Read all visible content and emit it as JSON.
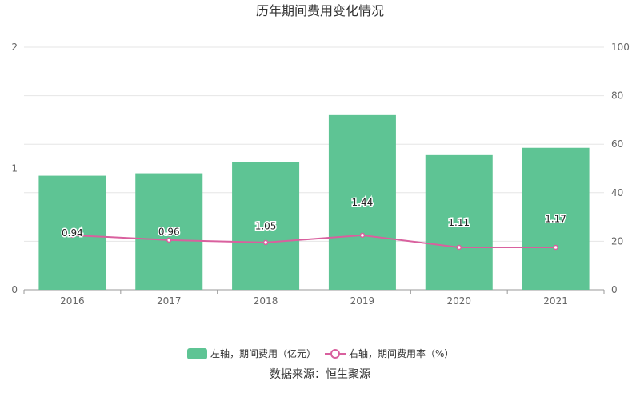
{
  "chart_data": {
    "type": "bar",
    "title": "历年期间费用变化情况",
    "categories": [
      "2016",
      "2017",
      "2018",
      "2019",
      "2020",
      "2021"
    ],
    "series": [
      {
        "name": "左轴，期间费用（亿元）",
        "type": "bar",
        "axis": "left",
        "values": [
          0.94,
          0.96,
          1.05,
          1.44,
          1.11,
          1.17
        ],
        "labels": [
          "0.94",
          "0.96",
          "1.05",
          "1.44",
          "1.11",
          "1.17"
        ],
        "color": "#5ec494"
      },
      {
        "name": "右轴，期间费用率（%）",
        "type": "line",
        "axis": "right",
        "values": [
          22.5,
          20.5,
          19.5,
          22.5,
          17.5,
          17.5
        ],
        "color": "#d9609e"
      }
    ],
    "y_left": {
      "min": 0,
      "max": 2,
      "ticks": [
        "0",
        "1",
        "2"
      ]
    },
    "y_right": {
      "min": 0,
      "max": 100,
      "ticks": [
        "0",
        "20",
        "40",
        "60",
        "80",
        "100"
      ]
    },
    "grid": true,
    "legend_position": "bottom"
  },
  "source": "数据来源：恒生聚源"
}
